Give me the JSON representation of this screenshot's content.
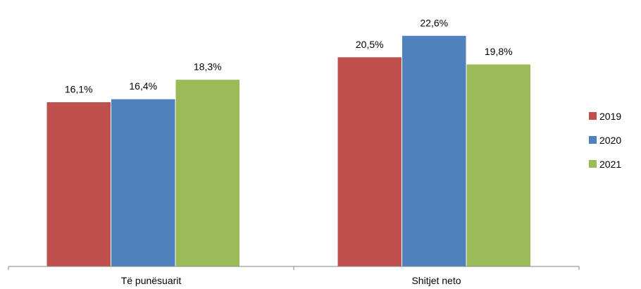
{
  "chart_data": {
    "type": "bar",
    "categories": [
      "Të punësuarit",
      "Shitjet neto"
    ],
    "series": [
      {
        "name": "2019",
        "color": "#C0504D",
        "values": [
          16.1,
          20.5
        ],
        "labels": [
          "16,1%",
          "20,5%"
        ]
      },
      {
        "name": "2020",
        "color": "#4F81BD",
        "values": [
          16.4,
          22.6
        ],
        "labels": [
          "16,4%",
          "22,6%"
        ]
      },
      {
        "name": "2021",
        "color": "#9BBB59",
        "values": [
          18.3,
          19.8
        ],
        "labels": [
          "18,3%",
          "19,8%"
        ]
      }
    ],
    "title": "",
    "xlabel": "",
    "ylabel": "",
    "ylim": [
      0,
      24
    ],
    "grid": false,
    "legend_position": "right"
  }
}
